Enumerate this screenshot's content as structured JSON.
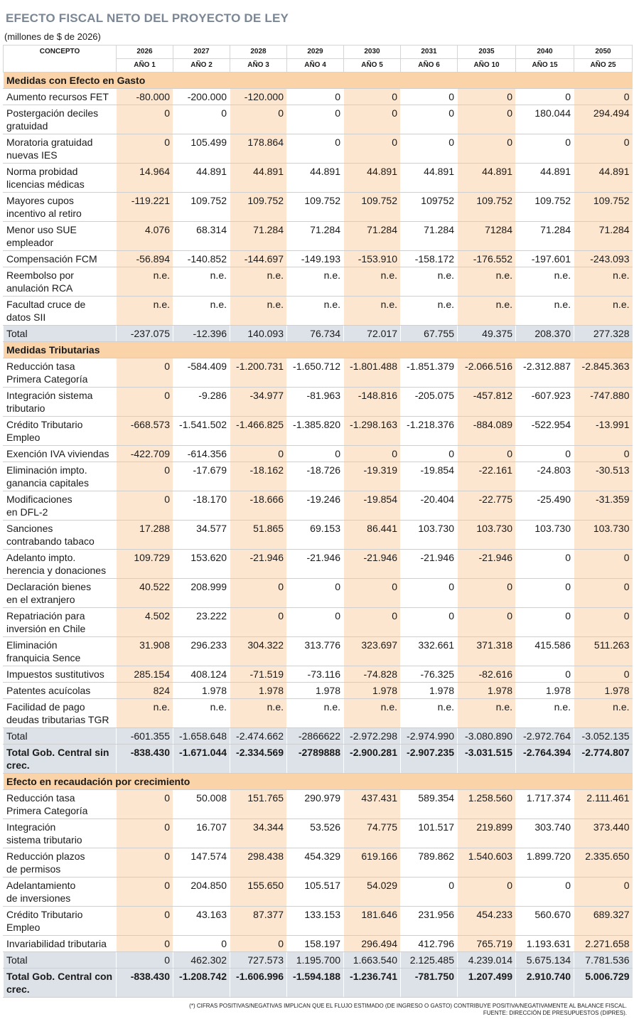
{
  "header": {
    "title": "EFECTO FISCAL NETO DEL PROYECTO DE LEY",
    "subtitle": "(millones de $ de 2026)"
  },
  "table": {
    "concept": "CONCEPTO",
    "years": [
      "2026",
      "2027",
      "2028",
      "2029",
      "2030",
      "2031",
      "2035",
      "2040",
      "2050"
    ],
    "periods": [
      "AÑO 1",
      "AÑO 2",
      "AÑO 3",
      "AÑO 4",
      "AÑO 5",
      "AÑO 6",
      "AÑO 10",
      "AÑO 15",
      "AÑO 25"
    ],
    "sections": [
      {
        "title": "Medidas con Efecto en Gasto",
        "rows": [
          {
            "label": "Aumento recursos FET",
            "values": [
              "-80.000",
              "-200.000",
              "-120.000",
              "0",
              "0",
              "0",
              "0",
              "0",
              "0"
            ]
          },
          {
            "label": "Postergación deciles\ngratuidad",
            "values": [
              "0",
              "0",
              "0",
              "0",
              "0",
              "0",
              "0",
              "180.044",
              "294.494"
            ]
          },
          {
            "label": "Moratoria gratuidad\nnuevas IES",
            "values": [
              "0",
              "105.499",
              "178.864",
              "0",
              "0",
              "0",
              "0",
              "0",
              "0"
            ]
          },
          {
            "label": "Norma probidad\nlicencias médicas",
            "values": [
              "14.964",
              "44.891",
              "44.891",
              "44.891",
              "44.891",
              "44.891",
              "44.891",
              "44.891",
              "44.891"
            ]
          },
          {
            "label": "Mayores cupos\nincentivo al retiro",
            "values": [
              "-119.221",
              "109.752",
              "109.752",
              "109.752",
              "109.752",
              "109752",
              "109.752",
              "109.752",
              "109.752"
            ]
          },
          {
            "label": "Menor uso SUE\nempleador",
            "values": [
              "4.076",
              "68.314",
              "71.284",
              "71.284",
              "71.284",
              "71.284",
              "71284",
              "71.284",
              "71.284"
            ]
          },
          {
            "label": "Compensación FCM",
            "values": [
              "-56.894",
              "-140.852",
              "-144.697",
              "-149.193",
              "-153.910",
              "-158.172",
              "-176.552",
              "-197.601",
              "-243.093"
            ]
          },
          {
            "label": "Reembolso por\nanulación RCA",
            "values": [
              "n.e.",
              "n.e.",
              "n.e.",
              "n.e.",
              "n.e.",
              "n.e.",
              "n.e.",
              "n.e.",
              "n.e."
            ]
          },
          {
            "label": "Facultad cruce de\ndatos SII",
            "values": [
              "n.e.",
              "n.e.",
              "n.e.",
              "n.e.",
              "n.e.",
              "n.e.",
              "n.e.",
              "n.e.",
              "n.e."
            ]
          }
        ],
        "total": {
          "label": "Total",
          "values": [
            "-237.075",
            "-12.396",
            "140.093",
            "76.734",
            "72.017",
            "67.755",
            "49.375",
            "208.370",
            "277.328"
          ]
        }
      },
      {
        "title": "Medidas Tributarias",
        "rows": [
          {
            "label": "Reducción tasa\nPrimera Categoría",
            "values": [
              "0",
              "-584.409",
              "-1.200.731",
              "-1.650.712",
              "-1.801.488",
              "-1.851.379",
              "-2.066.516",
              "-2.312.887",
              "-2.845.363"
            ]
          },
          {
            "label": "Integración sistema\ntributario",
            "values": [
              "0",
              "-9.286",
              "-34.977",
              "-81.963",
              "-148.816",
              "-205.075",
              "-457.812",
              "-607.923",
              "-747.880"
            ]
          },
          {
            "label": "Crédito Tributario\nEmpleo",
            "values": [
              "-668.573",
              "-1.541.502",
              "-1.466.825",
              "-1.385.820",
              "-1.298.163",
              "-1.218.376",
              "-884.089",
              "-522.954",
              "-13.991"
            ]
          },
          {
            "label": "Exención IVA viviendas",
            "values": [
              "-422.709",
              "-614.356",
              "0",
              "0",
              "0",
              "0",
              "0",
              "0",
              "0"
            ]
          },
          {
            "label": "Eliminación impto.\nganancia capitales",
            "values": [
              "0",
              "-17.679",
              "-18.162",
              "-18.726",
              "-19.319",
              "-19.854",
              "-22.161",
              "-24.803",
              "-30.513"
            ]
          },
          {
            "label": "Modificaciones\nen DFL-2",
            "values": [
              "0",
              "-18.170",
              "-18.666",
              "-19.246",
              "-19.854",
              "-20.404",
              "-22.775",
              "-25.490",
              "-31.359"
            ]
          },
          {
            "label": "Sanciones\ncontrabando tabaco",
            "values": [
              "17.288",
              "34.577",
              "51.865",
              "69.153",
              "86.441",
              "103.730",
              "103.730",
              "103.730",
              "103.730"
            ]
          },
          {
            "label": "Adelanto impto.\nherencia y donaciones",
            "values": [
              "109.729",
              "153.620",
              "-21.946",
              "-21.946",
              "-21.946",
              "-21.946",
              "-21.946",
              "0",
              "0"
            ]
          },
          {
            "label": "Declaración bienes\nen el extranjero",
            "values": [
              "40.522",
              "208.999",
              "0",
              "0",
              "0",
              "0",
              "0",
              "0",
              "0"
            ]
          },
          {
            "label": "Repatriación para\ninversión en Chile",
            "values": [
              "4.502",
              "23.222",
              "0",
              "0",
              "0",
              "0",
              "0",
              "0",
              "0"
            ]
          },
          {
            "label": "Eliminación\nfranquicia Sence",
            "values": [
              "31.908",
              "296.233",
              "304.322",
              "313.776",
              "323.697",
              "332.661",
              "371.318",
              "415.586",
              "511.263"
            ]
          },
          {
            "label": "Impuestos sustitutivos",
            "values": [
              "285.154",
              "408.124",
              "-71.519",
              "-73.116",
              "-74.828",
              "-76.325",
              "-82.616",
              "0",
              "0"
            ]
          },
          {
            "label": "Patentes acuícolas",
            "values": [
              "824",
              "1.978",
              "1.978",
              "1.978",
              "1.978",
              "1.978",
              "1.978",
              "1.978",
              "1.978"
            ]
          },
          {
            "label": "Facilidad de pago\ndeudas tributarias TGR",
            "values": [
              "n.e.",
              "n.e.",
              "n.e.",
              "n.e.",
              "n.e.",
              "n.e.",
              "n.e.",
              "n.e.",
              "n.e."
            ]
          }
        ],
        "total": {
          "label": "Total",
          "values": [
            "-601.355",
            "-1.658.648",
            "-2.474.662",
            "-2866622",
            "-2.972.298",
            "-2.974.990",
            "-3.080.890",
            "-2.972.764",
            "-3.052.135"
          ]
        },
        "grand_total": {
          "label": "Total Gob. Central sin\ncrec.",
          "values": [
            "-838.430",
            "-1.671.044",
            "-2.334.569",
            "-2789888",
            "-2.900.281",
            "-2.907.235",
            "-3.031.515",
            "-2.764.394",
            "-2.774.807"
          ]
        }
      },
      {
        "title": "Efecto en recaudación por crecimiento",
        "rows": [
          {
            "label": "Reducción tasa\nPrimera Categoría",
            "values": [
              "0",
              "50.008",
              "151.765",
              "290.979",
              "437.431",
              "589.354",
              "1.258.560",
              "1.717.374",
              "2.111.461"
            ]
          },
          {
            "label": "Integración\nsistema tributario",
            "values": [
              "0",
              "16.707",
              "34.344",
              "53.526",
              "74.775",
              "101.517",
              "219.899",
              "303.740",
              "373.440"
            ]
          },
          {
            "label": "Reducción plazos\nde permisos",
            "values": [
              "0",
              "147.574",
              "298.438",
              "454.329",
              "619.166",
              "789.862",
              "1.540.603",
              "1.899.720",
              "2.335.650"
            ]
          },
          {
            "label": "Adelantamiento\nde inversiones",
            "values": [
              "0",
              "204.850",
              "155.650",
              "105.517",
              "54.029",
              "0",
              "0",
              "0",
              "0"
            ]
          },
          {
            "label": "Crédito Tributario\nEmpleo",
            "values": [
              "0",
              "43.163",
              "87.377",
              "133.153",
              "181.646",
              "231.956",
              "454.233",
              "560.670",
              "689.327"
            ]
          },
          {
            "label": "Invariabilidad tributaria",
            "values": [
              "0",
              "0",
              "0",
              "158.197",
              "296.494",
              "412.796",
              "765.719",
              "1.193.631",
              "2.271.658"
            ]
          }
        ],
        "total": {
          "label": "Total",
          "values": [
            "0",
            "462.302",
            "727.573",
            "1.195.700",
            "1.663.540",
            "2.125.485",
            "4.239.014",
            "5.675.134",
            "7.781.536"
          ]
        },
        "grand_total": {
          "label": "Total Gob. Central con\ncrec.",
          "values": [
            "-838.430",
            "-1.208.742",
            "-1.606.996",
            "-1.594.188",
            "-1.236.741",
            "-781.750",
            "1.207.499",
            "2.910.740",
            "5.006.729"
          ]
        }
      }
    ]
  },
  "footer": {
    "lines": [
      "(*) CIFRAS POSITIVAS/NEGATIVAS IMPLICAN QUE EL FLUJO ESTIMADO (DE INGRESO O GASTO) CONTRIBUYE POSITIVA/NEGATIVAMENTE AL BALANCE FISCAL.",
      "FUENTE: DIRECCIÓN DE PRESUPUESTOS (DIPRES)."
    ]
  }
}
